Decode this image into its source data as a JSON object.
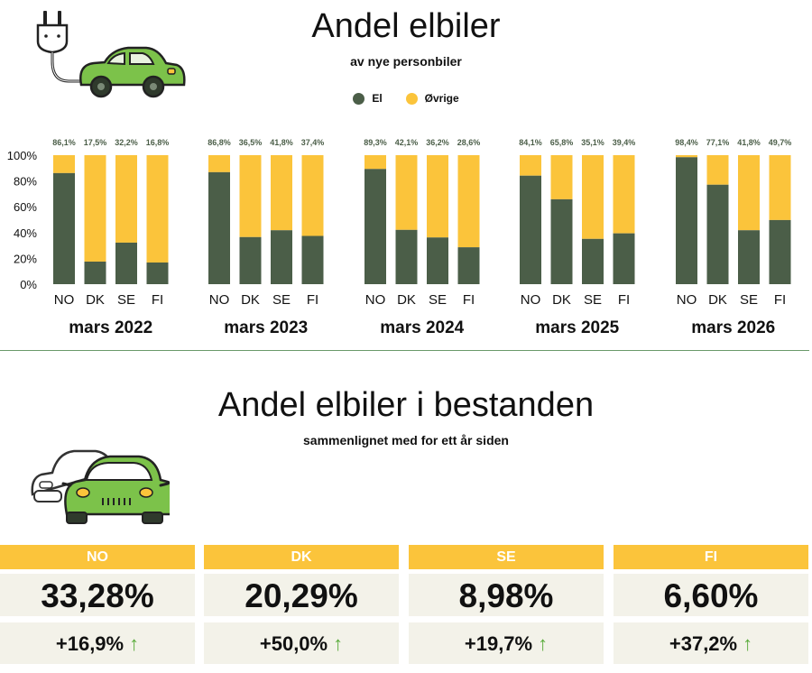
{
  "header": {
    "title": "Andel elbiler",
    "subtitle": "av nye personbiler"
  },
  "legend": [
    {
      "label": "El",
      "color": "#4b5e48"
    },
    {
      "label": "Øvrige",
      "color": "#fbc43b"
    }
  ],
  "chart_data": {
    "type": "bar",
    "stacked": true,
    "ylim": [
      0,
      100
    ],
    "yticks": [
      "0%",
      "20%",
      "40%",
      "60%",
      "80%",
      "100%"
    ],
    "series": [
      {
        "name": "El",
        "color": "#4b5e48"
      },
      {
        "name": "Øvrige",
        "color": "#fbc43b"
      }
    ],
    "groups": [
      {
        "label": "mars 2022",
        "categories": [
          "NO",
          "DK",
          "SE",
          "FI"
        ],
        "values": [
          86.1,
          17.5,
          32.2,
          16.8
        ],
        "value_labels": [
          "86,1%",
          "17,5%",
          "32,2%",
          "16,8%"
        ]
      },
      {
        "label": "mars 2023",
        "categories": [
          "NO",
          "DK",
          "SE",
          "FI"
        ],
        "values": [
          86.8,
          36.5,
          41.8,
          37.4
        ],
        "value_labels": [
          "86,8%",
          "36,5%",
          "41,8%",
          "37,4%"
        ]
      },
      {
        "label": "mars 2024",
        "categories": [
          "NO",
          "DK",
          "SE",
          "FI"
        ],
        "values": [
          89.3,
          42.1,
          36.2,
          28.6
        ],
        "value_labels": [
          "89,3%",
          "42,1%",
          "36,2%",
          "28,6%"
        ]
      },
      {
        "label": "mars 2025",
        "categories": [
          "NO",
          "DK",
          "SE",
          "FI"
        ],
        "values": [
          84.1,
          65.8,
          35.1,
          39.4
        ],
        "value_labels": [
          "84,1%",
          "65,8%",
          "35,1%",
          "39,4%"
        ]
      },
      {
        "label": "mars 2026",
        "categories": [
          "NO",
          "DK",
          "SE",
          "FI"
        ],
        "values": [
          98.4,
          77.1,
          41.8,
          49.7
        ],
        "value_labels": [
          "98,4%",
          "77,1%",
          "41,8%",
          "49,7%"
        ]
      }
    ]
  },
  "section2": {
    "title": "Andel elbiler i bestanden",
    "subtitle": "sammenlignet med for ett år siden"
  },
  "cards": [
    {
      "country": "NO",
      "value": "33,28%",
      "change": "+16,9%"
    },
    {
      "country": "DK",
      "value": "20,29%",
      "change": "+50,0%"
    },
    {
      "country": "SE",
      "value": "8,98%",
      "change": "+19,7%"
    },
    {
      "country": "FI",
      "value": "6,60%",
      "change": "+37,2%"
    }
  ],
  "icons": {
    "top": "plug-car-icon",
    "bottom": "two-cars-icon",
    "arrow": "arrow-up-icon"
  },
  "colors": {
    "el": "#4b5e48",
    "ovrige": "#fbc43b",
    "card_header": "#fbc43b",
    "card_bg": "#f3f2e9",
    "arrow": "#5aac3c",
    "car_green": "#7cc24a"
  }
}
